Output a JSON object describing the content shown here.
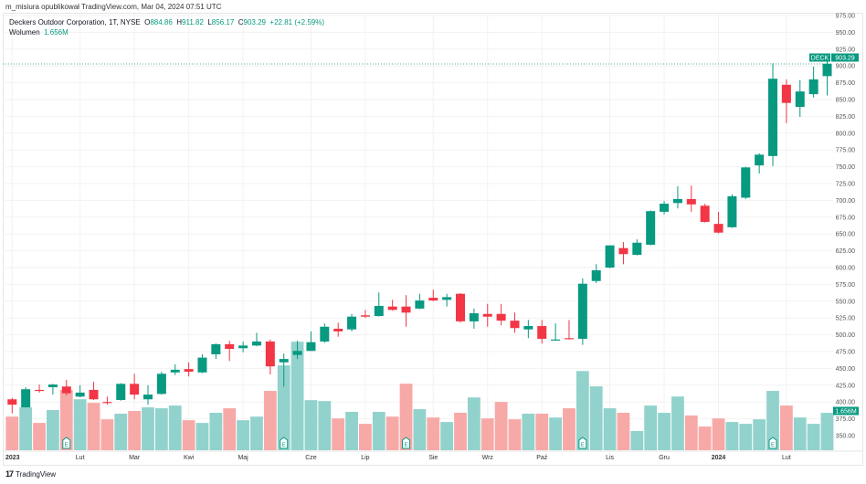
{
  "publisher_line": "m_misiura opublikował TradingView.com, Mar 04, 2024 07:51 UTC",
  "legend": {
    "symbol_desc": "Deckers Outdoor Corporation, 1T, NYSE",
    "o_label": "O",
    "o_value": "884.86",
    "h_label": "H",
    "h_value": "911.82",
    "l_label": "L",
    "l_value": "856.17",
    "c_label": "C",
    "c_value": "903.29",
    "change": "+22.81 (+2.59%)",
    "volume_label": "Wolumen",
    "volume_value": "1.656M"
  },
  "ticker_label": "DECK",
  "last_price_label": "903.29",
  "last_volume_label": "1.656M",
  "earnings_marker": "E",
  "footer_brand": "TradingView",
  "colors": {
    "up": "#089981",
    "down": "#f23645",
    "vol_up": "#92d2cc",
    "vol_down": "#f7a9a7"
  },
  "chart_data": {
    "type": "candlestick",
    "interval": "1W",
    "y_ticks": [
      "975.00",
      "950.00",
      "925.00",
      "900.00",
      "875.00",
      "850.00",
      "825.00",
      "800.00",
      "775.00",
      "750.00",
      "725.00",
      "700.00",
      "675.00",
      "650.00",
      "625.00",
      "600.00",
      "575.00",
      "550.00",
      "525.00",
      "500.00",
      "475.00",
      "450.00",
      "425.00",
      "400.00",
      "375.00",
      "350.00"
    ],
    "ylim": [
      340,
      980
    ],
    "x_labels": [
      {
        "label": "2023",
        "index": 0
      },
      {
        "label": "Lut",
        "index": 5
      },
      {
        "label": "Mar",
        "index": 9
      },
      {
        "label": "Kwi",
        "index": 13
      },
      {
        "label": "Maj",
        "index": 17
      },
      {
        "label": "Cze",
        "index": 22
      },
      {
        "label": "Lip",
        "index": 26
      },
      {
        "label": "Sie",
        "index": 31
      },
      {
        "label": "Wrz",
        "index": 35
      },
      {
        "label": "Paź",
        "index": 39
      },
      {
        "label": "Lis",
        "index": 44
      },
      {
        "label": "Gru",
        "index": 48
      },
      {
        "label": "2024",
        "index": 52
      },
      {
        "label": "Lut",
        "index": 57
      }
    ],
    "earnings_indices": [
      4,
      20,
      29,
      42,
      56
    ],
    "ohlc": [
      [
        404,
        406,
        383,
        396
      ],
      [
        392,
        422,
        392,
        419
      ],
      [
        418,
        426,
        414,
        417
      ],
      [
        422,
        427,
        411,
        426
      ],
      [
        423,
        433,
        410,
        413
      ],
      [
        408,
        425,
        407,
        414
      ],
      [
        418,
        430,
        403,
        404
      ],
      [
        400,
        408,
        396,
        399
      ],
      [
        403,
        428,
        402,
        427
      ],
      [
        427,
        442,
        404,
        411
      ],
      [
        404,
        425,
        396,
        411
      ],
      [
        412,
        445,
        411,
        442
      ],
      [
        444,
        456,
        440,
        448
      ],
      [
        449,
        459,
        438,
        445
      ],
      [
        444,
        471,
        443,
        466
      ],
      [
        471,
        487,
        464,
        486
      ],
      [
        486,
        491,
        461,
        479
      ],
      [
        480,
        490,
        474,
        484
      ],
      [
        484,
        503,
        483,
        490
      ],
      [
        490,
        493,
        441,
        453
      ],
      [
        459,
        472,
        423,
        464
      ],
      [
        470,
        491,
        464,
        476
      ],
      [
        476,
        505,
        476,
        489
      ],
      [
        490,
        517,
        488,
        512
      ],
      [
        509,
        518,
        497,
        505
      ],
      [
        508,
        531,
        505,
        527
      ],
      [
        529,
        537,
        525,
        527
      ],
      [
        528,
        563,
        527,
        543
      ],
      [
        542,
        552,
        536,
        537
      ],
      [
        542,
        559,
        512,
        533
      ],
      [
        539,
        561,
        538,
        551
      ],
      [
        555,
        567,
        550,
        551
      ],
      [
        552,
        561,
        542,
        556
      ],
      [
        561,
        562,
        518,
        520
      ],
      [
        520,
        539,
        509,
        532
      ],
      [
        531,
        546,
        512,
        527
      ],
      [
        531,
        546,
        514,
        521
      ],
      [
        521,
        533,
        503,
        510
      ],
      [
        508,
        522,
        495,
        513
      ],
      [
        513,
        522,
        487,
        494
      ],
      [
        492,
        517,
        492,
        493
      ],
      [
        495,
        522,
        493,
        494
      ],
      [
        494,
        584,
        485,
        576
      ],
      [
        580,
        605,
        577,
        596
      ],
      [
        600,
        633,
        599,
        633
      ],
      [
        629,
        638,
        605,
        620
      ],
      [
        619,
        642,
        618,
        637
      ],
      [
        634,
        685,
        633,
        684
      ],
      [
        683,
        699,
        679,
        695
      ],
      [
        696,
        721,
        688,
        702
      ],
      [
        702,
        722,
        683,
        694
      ],
      [
        692,
        695,
        667,
        668
      ],
      [
        665,
        683,
        651,
        652
      ],
      [
        660,
        709,
        659,
        706
      ],
      [
        704,
        750,
        702,
        749
      ],
      [
        752,
        770,
        740,
        768
      ],
      [
        766,
        904,
        751,
        881
      ],
      [
        872,
        880,
        815,
        845
      ],
      [
        839,
        879,
        824,
        862
      ],
      [
        858,
        899,
        853,
        880
      ],
      [
        884.86,
        911.82,
        856.17,
        903.29
      ]
    ],
    "volume_millions": [
      1.49,
      1.9,
      1.21,
      1.78,
      2.67,
      2.26,
      2.1,
      1.37,
      1.62,
      1.74,
      1.9,
      1.86,
      1.98,
      1.33,
      1.21,
      1.66,
      1.86,
      1.33,
      1.49,
      2.63,
      3.76,
      4.81,
      2.22,
      2.18,
      1.41,
      1.7,
      1.17,
      1.7,
      1.49,
      2.95,
      1.82,
      1.45,
      1.25,
      1.66,
      2.34,
      1.41,
      2.14,
      1.37,
      1.62,
      1.62,
      1.45,
      1.86,
      3.51,
      2.83,
      1.86,
      1.66,
      0.85,
      1.98,
      1.66,
      2.38,
      1.54,
      1.05,
      1.41,
      1.25,
      1.17,
      1.37,
      2.63,
      1.98,
      1.45,
      1.17,
      1.656
    ]
  }
}
